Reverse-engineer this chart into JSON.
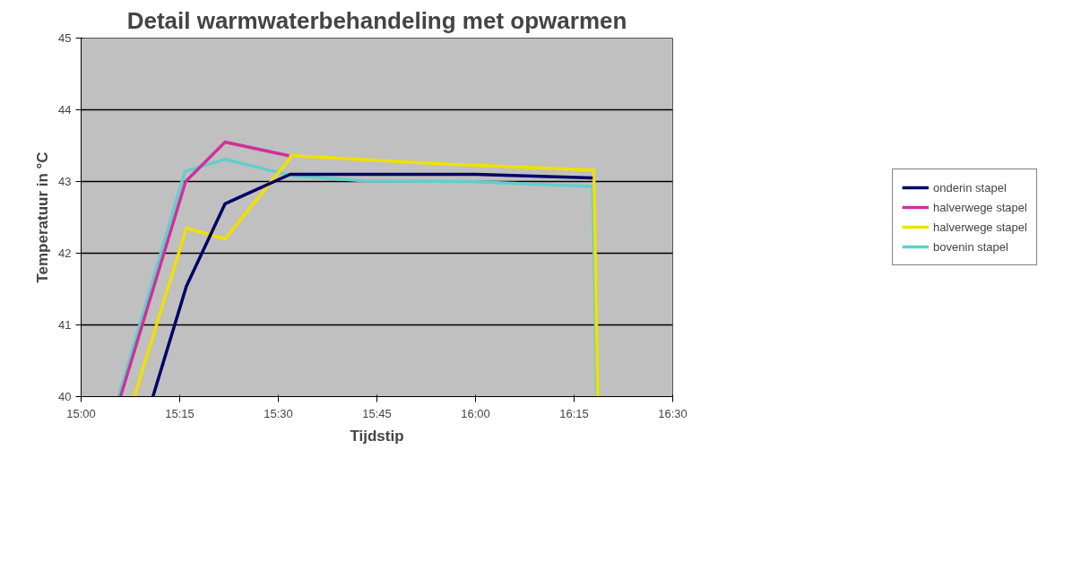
{
  "chart_data": {
    "type": "line",
    "title": "Detail warmwaterbehandeling met opwarmen",
    "xlabel": "Tijdstip",
    "ylabel": "Temperatuur in °C",
    "xlim": [
      15,
      16.5
    ],
    "xticks": [
      {
        "value": 15,
        "label": "15:00"
      },
      {
        "value": 15.25,
        "label": "15:15"
      },
      {
        "value": 15.5,
        "label": "15:30"
      },
      {
        "value": 15.75,
        "label": "15:45"
      },
      {
        "value": 16,
        "label": "16:00"
      },
      {
        "value": 16.25,
        "label": "16:15"
      },
      {
        "value": 16.5,
        "label": "16:30"
      }
    ],
    "ylim": [
      40,
      45
    ],
    "yticks": [
      40,
      41,
      42,
      43,
      44,
      45
    ],
    "grid": "y",
    "legend": "right",
    "marker": "none",
    "line_style": "solid",
    "series": [
      {
        "name": "onderin stapel",
        "color": "#000066",
        "x": [
          15.182,
          15.267,
          15.365,
          15.53,
          16.0,
          16.297
        ],
        "values": [
          40,
          41.54,
          42.69,
          43.1,
          43.1,
          43.05
        ]
      },
      {
        "name": "halverwege stapel",
        "color": "#cc3399",
        "x": [
          15.1,
          15.265,
          15.365,
          15.527
        ],
        "values": [
          40,
          43.0,
          43.55,
          43.36
        ]
      },
      {
        "name": "halverwege stapel",
        "color": "#f0e000",
        "x": [
          15.135,
          15.267,
          15.365,
          15.535,
          15.933,
          16.3,
          16.31
        ],
        "values": [
          40,
          42.35,
          42.2,
          43.36,
          43.24,
          43.16,
          40
        ]
      },
      {
        "name": "bovenin stapel",
        "color": "#66cccc",
        "x": [
          15.095,
          15.263,
          15.365,
          15.535,
          15.72,
          15.98,
          16.297,
          16.308
        ],
        "values": [
          40,
          43.14,
          43.31,
          43.08,
          43.01,
          43.0,
          42.93,
          40
        ]
      }
    ]
  }
}
